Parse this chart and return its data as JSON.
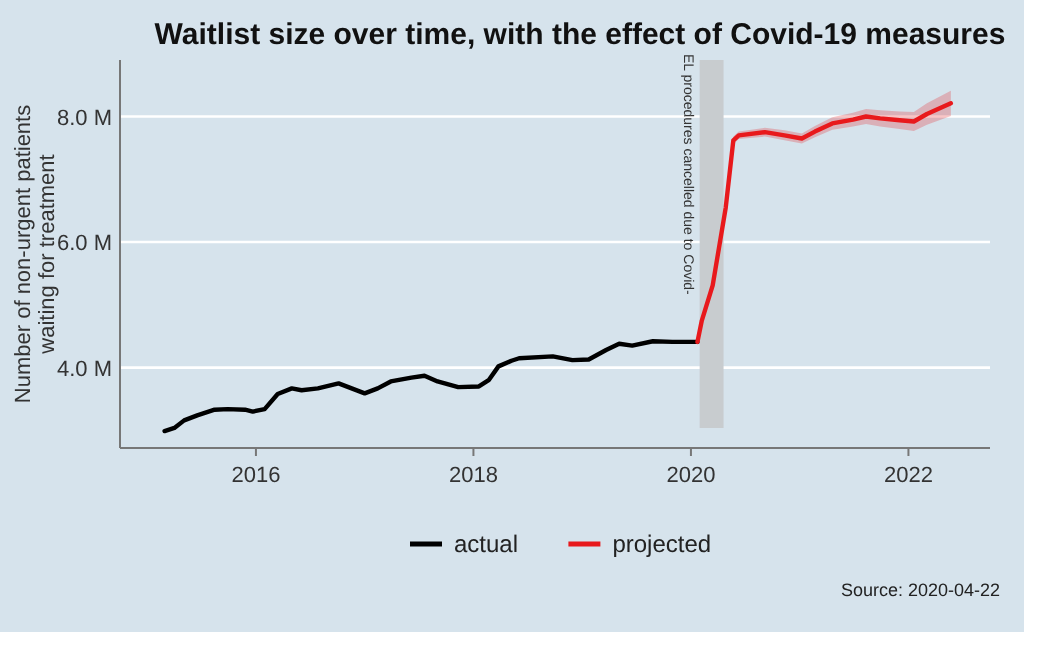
{
  "chart_data": {
    "type": "line",
    "title": "Waitlist size over time, with the effect of Covid-19 measures",
    "ylabel": "Number of non-urgent patients\nwaiting for treatment",
    "xlim": [
      2014.75,
      2022.75
    ],
    "xticks": [
      2016,
      2018,
      2020,
      2022
    ],
    "ylim": [
      2.72,
      8.9
    ],
    "yticks": [
      {
        "value": 4,
        "label": "4.0 M"
      },
      {
        "value": 6,
        "label": "6.0 M"
      },
      {
        "value": 8,
        "label": "8.0 M"
      }
    ],
    "grid": "y",
    "legend": "bottom",
    "line_style": "solid",
    "marker": "none",
    "series": [
      {
        "name": "actual",
        "color": "#000000",
        "x": [
          2015.16,
          2015.25,
          2015.34,
          2015.46,
          2015.62,
          2015.74,
          2015.9,
          2015.97,
          2016.08,
          2016.2,
          2016.33,
          2016.42,
          2016.57,
          2016.76,
          2016.85,
          2017.0,
          2017.12,
          2017.24,
          2017.43,
          2017.55,
          2017.67,
          2017.86,
          2018.05,
          2018.14,
          2018.23,
          2018.35,
          2018.42,
          2018.73,
          2018.91,
          2019.06,
          2019.22,
          2019.34,
          2019.46,
          2019.65,
          2019.83,
          2020.06
        ],
        "values": [
          2.99,
          3.04,
          3.16,
          3.24,
          3.33,
          3.34,
          3.33,
          3.3,
          3.34,
          3.58,
          3.67,
          3.64,
          3.67,
          3.75,
          3.69,
          3.59,
          3.67,
          3.78,
          3.84,
          3.87,
          3.78,
          3.69,
          3.7,
          3.8,
          4.02,
          4.11,
          4.15,
          4.18,
          4.12,
          4.13,
          4.28,
          4.38,
          4.35,
          4.42,
          4.41,
          4.41
        ]
      },
      {
        "name": "projected",
        "color": "#e8191c",
        "x": [
          2020.06,
          2020.1,
          2020.2,
          2020.32,
          2020.39,
          2020.44,
          2020.68,
          2020.86,
          2021.02,
          2021.14,
          2021.3,
          2021.49,
          2021.61,
          2021.74,
          2021.92,
          2022.05,
          2022.17,
          2022.39
        ],
        "values": [
          4.41,
          4.75,
          5.31,
          6.55,
          7.62,
          7.7,
          7.75,
          7.7,
          7.65,
          7.76,
          7.89,
          7.95,
          8.0,
          7.97,
          7.94,
          7.92,
          8.04,
          8.21
        ],
        "lower": [
          4.41,
          4.72,
          5.26,
          6.49,
          7.56,
          7.64,
          7.68,
          7.62,
          7.57,
          7.67,
          7.79,
          7.84,
          7.88,
          7.84,
          7.8,
          7.77,
          7.87,
          8.01
        ],
        "upper": [
          4.41,
          4.78,
          5.36,
          6.61,
          7.68,
          7.76,
          7.82,
          7.78,
          7.73,
          7.85,
          7.99,
          8.06,
          8.12,
          8.1,
          8.08,
          8.07,
          8.21,
          8.41
        ]
      }
    ],
    "bands": [
      {
        "axis": "x",
        "from": 2020.08,
        "to": 2020.3,
        "label": "EL procedures cancelled due to Covid-",
        "color": "#c8cccf"
      }
    ],
    "annotations": [
      "Source: 2020-04-22"
    ]
  }
}
